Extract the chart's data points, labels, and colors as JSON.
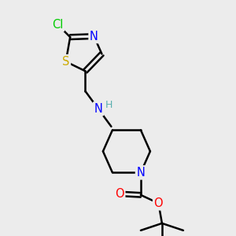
{
  "background_color": "#ececec",
  "bond_color": "#000000",
  "bond_width": 1.8,
  "atom_colors": {
    "Cl": "#00cc00",
    "N": "#0000ff",
    "S": "#ccaa00",
    "O": "#ff0000",
    "C": "#000000",
    "H": "#5aafaf"
  },
  "font_size": 10.5,
  "figsize": [
    3.0,
    3.0
  ],
  "dpi": 100
}
